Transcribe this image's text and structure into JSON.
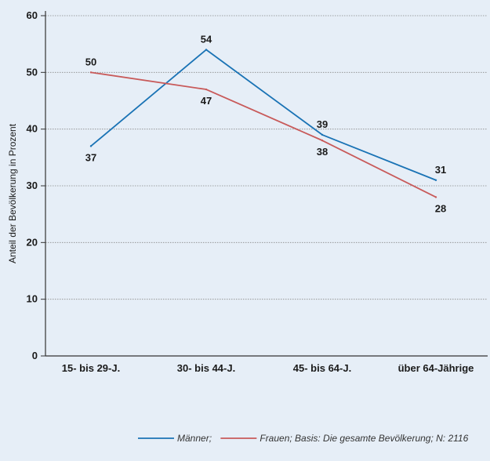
{
  "chart_data": {
    "type": "line",
    "categories": [
      "15- bis 29-J.",
      "30- bis 44-J.",
      "45- bis 64-J.",
      "über 64-Jährige"
    ],
    "series": [
      {
        "name": "Männer",
        "values": [
          37,
          54,
          39,
          31
        ],
        "color": "#1a73b5"
      },
      {
        "name": "Frauen",
        "values": [
          50,
          47,
          38,
          28
        ],
        "color": "#c85a5a"
      }
    ],
    "title": "",
    "xlabel": "",
    "ylabel": "Anteil der Bevölkerung in Prozent",
    "ylim": [
      0,
      60
    ],
    "yticks": [
      0,
      10,
      20,
      30,
      40,
      50,
      60
    ],
    "grid": true,
    "legend_placement": "bottom-right",
    "legend_suffix": "; Basis: Die gesamte Bevölkerung; N: 2116"
  },
  "colors": {
    "background": "#e6eef7",
    "grid": "#888888",
    "axis": "#333333"
  }
}
